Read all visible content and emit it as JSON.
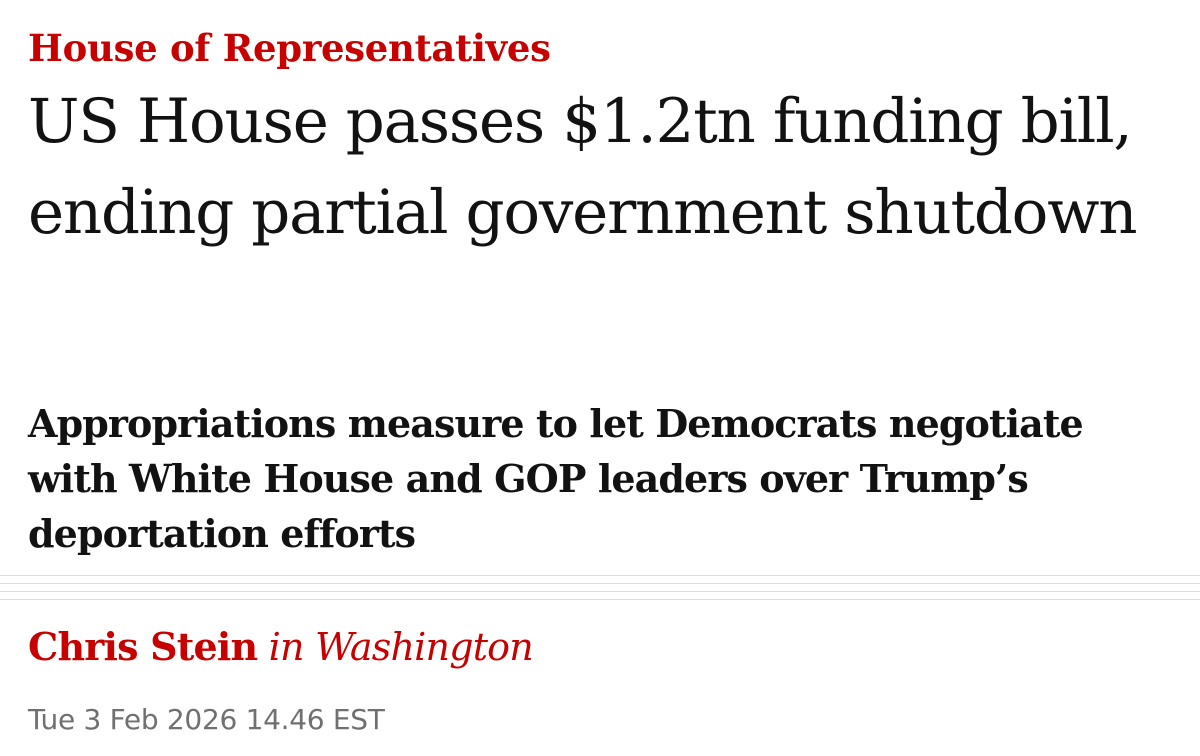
{
  "article": {
    "kicker": "House of Representatives",
    "headline": "US House passes $1.2tn funding bill, ending partial government shutdown",
    "standfirst": "Appropriations measure to let Democrats negotiate with White House and GOP leaders over Trump’s deportation efforts",
    "byline": {
      "author": "Chris Stein",
      "location": "in Washington"
    },
    "dateline": "Tue 3 Feb 2026 14.46 EST"
  },
  "colors": {
    "accent": "#c70000",
    "text": "#121212",
    "meta": "#707070",
    "rule": "#dcdcdc"
  }
}
